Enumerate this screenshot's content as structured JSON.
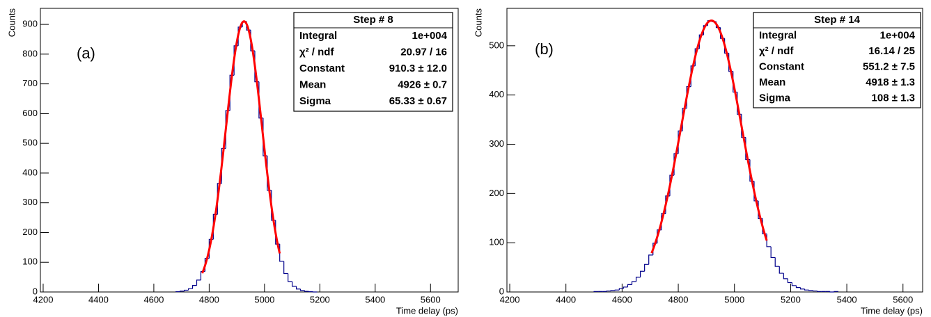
{
  "chart_data": [
    {
      "type": "histogram",
      "panel_label": "(a)",
      "xlabel": "Time delay (ps)",
      "ylabel": "Counts",
      "color": "#00008b",
      "xlim": [
        4190,
        5700
      ],
      "ylim": [
        0,
        954
      ],
      "xticks": [
        4200,
        4400,
        4600,
        4800,
        5000,
        5200,
        5400,
        5600
      ],
      "yticks": [
        0,
        100,
        200,
        300,
        400,
        500,
        600,
        700,
        800,
        900
      ],
      "bins": [
        4680,
        4695,
        4710,
        4725,
        4740,
        4755,
        4770,
        4785,
        4800,
        4815,
        4830,
        4845,
        4860,
        4875,
        4890,
        4905,
        4920,
        4935,
        4950,
        4965,
        4980,
        4995,
        5010,
        5025,
        5040,
        5055,
        5070,
        5085,
        5100,
        5115,
        5130,
        5145,
        5160,
        5175,
        5190
      ],
      "counts": [
        1,
        3,
        6,
        11,
        22,
        40,
        69,
        113,
        177,
        261,
        365,
        483,
        610,
        729,
        828,
        891,
        910,
        881,
        811,
        707,
        585,
        458,
        342,
        241,
        161,
        103,
        62,
        35,
        19,
        10,
        5,
        2,
        1,
        0
      ],
      "fit": {
        "color": "#ff0000",
        "constant": 910.3,
        "mean": 4926,
        "sigma": 65.33,
        "range": [
          4775,
          5055
        ]
      },
      "stats": {
        "title": "Step # 8",
        "rows": [
          {
            "label": "Integral",
            "value": "1e+004"
          },
          {
            "label": "χ² / ndf",
            "value": "20.97 / 16"
          },
          {
            "label": "Constant",
            "value": "910.3 ± 12.0"
          },
          {
            "label": "Mean",
            "value": "4926 ± 0.7"
          },
          {
            "label": "Sigma",
            "value": "65.33 ± 0.67"
          }
        ]
      }
    },
    {
      "type": "histogram",
      "panel_label": "(b)",
      "xlabel": "Time delay (ps)",
      "ylabel": "Counts",
      "color": "#00008b",
      "xlim": [
        4190,
        5670
      ],
      "ylim": [
        0,
        576
      ],
      "xticks": [
        4200,
        4400,
        4600,
        4800,
        5000,
        5200,
        5400,
        5600
      ],
      "yticks": [
        0,
        100,
        200,
        300,
        400,
        500
      ],
      "bins": [
        4500,
        4515,
        4530,
        4545,
        4560,
        4575,
        4590,
        4605,
        4620,
        4635,
        4650,
        4665,
        4680,
        4695,
        4710,
        4725,
        4740,
        4755,
        4770,
        4785,
        4800,
        4815,
        4830,
        4845,
        4860,
        4875,
        4890,
        4905,
        4920,
        4935,
        4950,
        4965,
        4980,
        4995,
        5010,
        5025,
        5040,
        5055,
        5070,
        5085,
        5100,
        5115,
        5130,
        5145,
        5160,
        5175,
        5190,
        5205,
        5220,
        5235,
        5250,
        5265,
        5280,
        5295,
        5310,
        5325,
        5340,
        5355,
        5370
      ],
      "counts": [
        1,
        1,
        1,
        2,
        3,
        4,
        7,
        10,
        15,
        21,
        30,
        42,
        56,
        75,
        99,
        126,
        159,
        195,
        237,
        281,
        327,
        373,
        417,
        459,
        494,
        522,
        541,
        551,
        549,
        537,
        515,
        485,
        448,
        406,
        361,
        314,
        269,
        225,
        185,
        149,
        118,
        92,
        70,
        52,
        38,
        27,
        19,
        13,
        9,
        6,
        4,
        3,
        2,
        1,
        1,
        1,
        0,
        1
      ],
      "fit": {
        "color": "#ff0000",
        "constant": 551.2,
        "mean": 4918,
        "sigma": 108,
        "range": [
          4705,
          5115
        ]
      },
      "stats": {
        "title": "Step # 14",
        "rows": [
          {
            "label": "Integral",
            "value": "1e+004"
          },
          {
            "label": "χ² / ndf",
            "value": "16.14 / 25"
          },
          {
            "label": "Constant",
            "value": "551.2 ± 7.5"
          },
          {
            "label": "Mean",
            "value": "4918 ± 1.3"
          },
          {
            "label": "Sigma",
            "value": "108 ± 1.3"
          }
        ]
      }
    }
  ]
}
